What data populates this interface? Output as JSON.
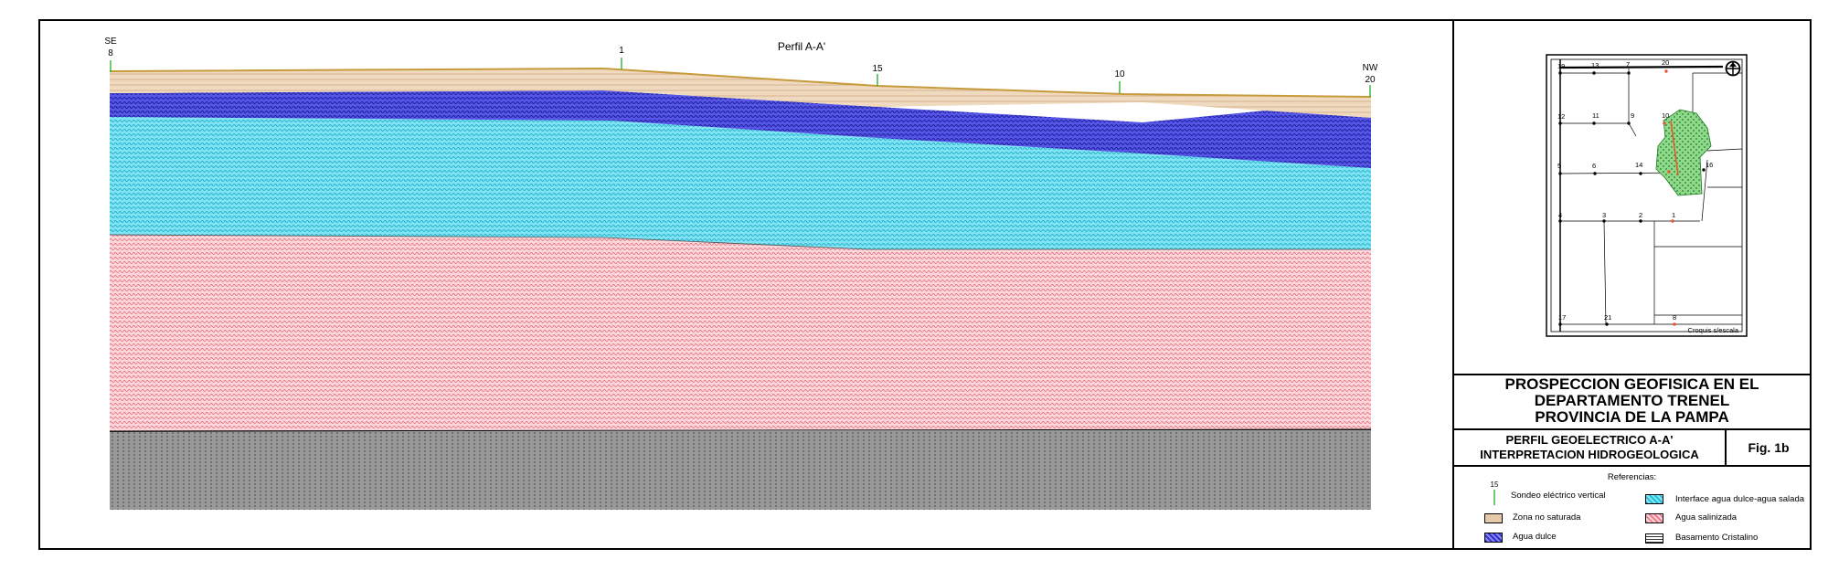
{
  "profile": {
    "title": "Perfil A-A'",
    "se_label": "SE",
    "nw_label": "NW",
    "stations": [
      "8",
      "1",
      "15",
      "10",
      "20"
    ]
  },
  "map": {
    "caption": "Croquis s/escala",
    "points": [
      "19",
      "13",
      "7",
      "20",
      "12",
      "11",
      "9",
      "10",
      "5",
      "6",
      "14",
      "16",
      "4",
      "3",
      "2",
      "1",
      "17",
      "21",
      "8"
    ]
  },
  "title_block": {
    "line1": "PROSPECCION GEOFISICA EN EL",
    "line2": "DEPARTAMENTO TRENEL",
    "line3": "PROVINCIA DE LA PAMPA",
    "subtitle1": "PERFIL GEOELECTRICO A-A'",
    "subtitle2": "INTERPRETACION HIDROGEOLOGICA",
    "figure": "Fig. 1b"
  },
  "legend": {
    "heading": "Referencias:",
    "sev_number": "15",
    "sev": "Sondeo eléctrico vertical",
    "unsaturated": "Zona no saturada",
    "fresh": "Agua dulce",
    "interface": "Interface agua dulce-agua salada",
    "saline": "Agua salinizada",
    "basement": "Basamento Cristalino"
  },
  "colors": {
    "unsaturated": "#e6c9a8",
    "fresh": "#3b3bd6",
    "interface": "#3fd2ea",
    "saline": "#f29aa4",
    "basement": "#444444",
    "sev": "#22aa22"
  }
}
